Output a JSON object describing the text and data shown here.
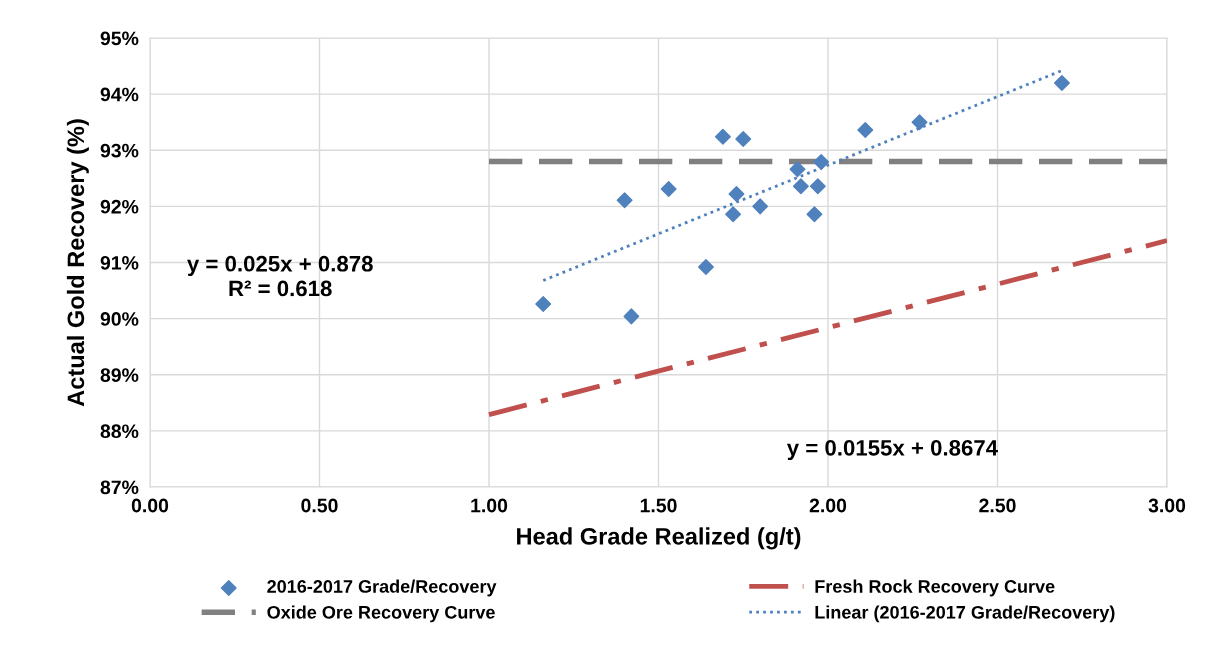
{
  "chart_data": {
    "type": "scatter",
    "xlabel": "Head Grade Realized (g/t)",
    "ylabel": "Actual Gold Recovery (%)",
    "xlim": [
      0,
      3
    ],
    "xticks": [
      {
        "value": 0,
        "label": "0.00"
      },
      {
        "value": 0.5,
        "label": "0.50"
      },
      {
        "value": 1,
        "label": "1.00"
      },
      {
        "value": 1.5,
        "label": "1.50"
      },
      {
        "value": 2,
        "label": "2.00"
      },
      {
        "value": 2.5,
        "label": "2.50"
      },
      {
        "value": 3,
        "label": "3.00"
      }
    ],
    "ylim": [
      87,
      95
    ],
    "yticks": [
      {
        "value": 87,
        "label": "87%"
      },
      {
        "value": 88,
        "label": "88%"
      },
      {
        "value": 89,
        "label": "89%"
      },
      {
        "value": 90,
        "label": "90%"
      },
      {
        "value": 91,
        "label": "91%"
      },
      {
        "value": 92,
        "label": "92%"
      },
      {
        "value": 93,
        "label": "93%"
      },
      {
        "value": 94,
        "label": "94%"
      },
      {
        "value": 95,
        "label": "95%"
      }
    ],
    "grid": true,
    "legend": "bottom",
    "series": [
      {
        "name": "2016-2017 Grade/Recovery",
        "marker": "diamond",
        "color": "#4f81bd",
        "x": [
          1.16,
          1.4,
          1.42,
          1.53,
          1.64,
          1.69,
          1.73,
          1.72,
          1.75,
          1.8,
          1.91,
          1.92,
          1.96,
          1.97,
          1.98,
          2.11,
          2.27,
          2.69
        ],
        "values": [
          90.26,
          92.11,
          90.04,
          92.31,
          90.92,
          93.24,
          92.22,
          91.86,
          93.2,
          92.0,
          92.66,
          92.36,
          91.86,
          92.36,
          92.79,
          93.36,
          93.5,
          94.2
        ]
      },
      {
        "name": "Oxide Ore Recovery Curve",
        "type": "line",
        "line_style": "dashed",
        "color": "#808080",
        "x": [
          1,
          3
        ],
        "values": [
          92.8,
          92.8
        ]
      },
      {
        "name": "Fresh Rock Recovery Curve",
        "type": "line",
        "line_style": "dashdot",
        "color": "#c0504d",
        "x": [
          1,
          3
        ],
        "values": [
          88.29,
          91.39
        ]
      },
      {
        "name": "Linear (2016-2017 Grade/Recovery)",
        "type": "line",
        "line_style": "dotted",
        "color": "#4f81bd",
        "x": [
          1.16,
          2.69
        ],
        "values": [
          90.68,
          94.42
        ]
      }
    ],
    "annotations": [
      "y = 0.025x + 0.878",
      "R² = 0.618",
      "y = 0.0155x + 0.8674"
    ]
  }
}
